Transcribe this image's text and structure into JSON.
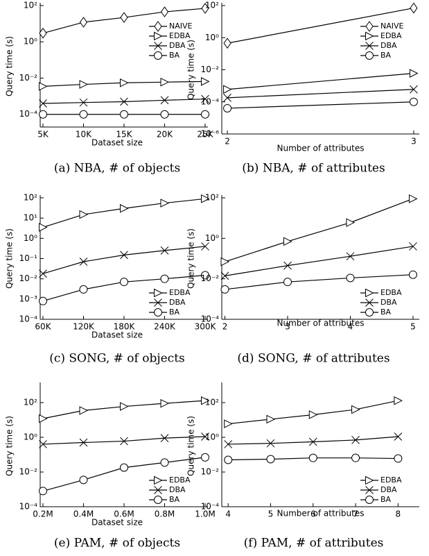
{
  "chart_data": [
    {
      "type": "line",
      "caption": "(a) NBA, # of objects",
      "xlabel": "Dataset size",
      "ylabel": "Query time (s)",
      "log_y": true,
      "legend": "upper right",
      "categories": [
        "5K",
        "10K",
        "15K",
        "20K",
        "25K"
      ],
      "ylim": [
        2e-05,
        100
      ],
      "yticks": [
        {
          "value": 0.0001,
          "label": "10⁻⁴"
        },
        {
          "value": 0.01,
          "label": "10⁻²"
        },
        {
          "value": 1,
          "label": "10⁰"
        },
        {
          "value": 100,
          "label": "10²"
        }
      ],
      "series": [
        {
          "name": "NAIVE",
          "marker": "diamond",
          "color": "#000000",
          "values": [
            3,
            12,
            22,
            45,
            70
          ]
        },
        {
          "name": "EDBA",
          "marker": "triangle",
          "color": "#000000",
          "values": [
            0.0035,
            0.0045,
            0.0055,
            0.006,
            0.0065
          ]
        },
        {
          "name": "DBA",
          "marker": "x",
          "color": "#000000",
          "values": [
            0.0004,
            0.00045,
            0.0005,
            0.0006,
            0.0007
          ]
        },
        {
          "name": "BA",
          "marker": "circle",
          "color": "#000000",
          "values": [
            0.0001,
            0.0001,
            0.0001,
            0.0001,
            0.0001
          ]
        }
      ]
    },
    {
      "type": "line",
      "caption": "(b) NBA, # of attributes",
      "xlabel": "Number of attributes",
      "ylabel": "Query time (s)",
      "log_y": true,
      "legend": "upper right",
      "x": [
        2,
        3
      ],
      "xlim": [
        1.97,
        3.03
      ],
      "xticks": [
        2,
        3
      ],
      "ylim": [
        1e-06,
        100
      ],
      "yticks": [
        {
          "value": 1e-06,
          "label": "10⁻⁶"
        },
        {
          "value": 0.0001,
          "label": "10⁻⁴"
        },
        {
          "value": 0.01,
          "label": "10⁻²"
        },
        {
          "value": 1,
          "label": "10⁰"
        },
        {
          "value": 100,
          "label": "10²"
        }
      ],
      "series": [
        {
          "name": "NAIVE",
          "marker": "diamond",
          "color": "#000000",
          "values": [
            0.45,
            70
          ]
        },
        {
          "name": "EDBA",
          "marker": "triangle",
          "color": "#000000",
          "values": [
            0.0006,
            0.006
          ]
        },
        {
          "name": "DBA",
          "marker": "x",
          "color": "#000000",
          "values": [
            0.00018,
            0.0006
          ]
        },
        {
          "name": "BA",
          "marker": "circle",
          "color": "#000000",
          "values": [
            4e-05,
            0.0001
          ]
        }
      ]
    },
    {
      "type": "line",
      "caption": "(c) SONG, # of objects",
      "xlabel": "Dataset size",
      "ylabel": "Query time (s)",
      "log_y": true,
      "legend": "lower right",
      "categories": [
        "60K",
        "120K",
        "180K",
        "240K",
        "300K"
      ],
      "ylim": [
        0.0001,
        100
      ],
      "yticks": [
        {
          "value": 0.0001,
          "label": "10⁻⁴"
        },
        {
          "value": 0.001,
          "label": "10⁻³"
        },
        {
          "value": 0.01,
          "label": "10⁻²"
        },
        {
          "value": 0.1,
          "label": "10⁻¹"
        },
        {
          "value": 1,
          "label": "10⁰"
        },
        {
          "value": 10,
          "label": "10¹"
        },
        {
          "value": 100,
          "label": "10²"
        }
      ],
      "series": [
        {
          "name": "EDBA",
          "marker": "triangle",
          "color": "#000000",
          "values": [
            3.5,
            15,
            30,
            55,
            90
          ]
        },
        {
          "name": "DBA",
          "marker": "x",
          "color": "#000000",
          "values": [
            0.018,
            0.07,
            0.15,
            0.25,
            0.4
          ]
        },
        {
          "name": "BA",
          "marker": "circle",
          "color": "#000000",
          "values": [
            0.0008,
            0.003,
            0.007,
            0.01,
            0.015
          ]
        }
      ]
    },
    {
      "type": "line",
      "caption": "(d) SONG, # of attributes",
      "xlabel": "Number of attributes",
      "ylabel": "Query time (s)",
      "log_y": true,
      "legend": "lower right",
      "x": [
        2,
        3,
        4,
        5
      ],
      "xlim": [
        1.95,
        5.1
      ],
      "xticks": [
        2,
        3,
        4,
        5
      ],
      "ylim": [
        0.0001,
        100
      ],
      "yticks": [
        {
          "value": 0.0001,
          "label": "10⁻⁴"
        },
        {
          "value": 0.01,
          "label": "10⁻²"
        },
        {
          "value": 1,
          "label": "10⁰"
        },
        {
          "value": 100,
          "label": "10²"
        }
      ],
      "series": [
        {
          "name": "EDBA",
          "marker": "triangle",
          "color": "#000000",
          "values": [
            0.07,
            0.7,
            6,
            90
          ]
        },
        {
          "name": "DBA",
          "marker": "x",
          "color": "#000000",
          "values": [
            0.014,
            0.045,
            0.13,
            0.4
          ]
        },
        {
          "name": "BA",
          "marker": "circle",
          "color": "#000000",
          "values": [
            0.003,
            0.007,
            0.011,
            0.016
          ]
        }
      ]
    },
    {
      "type": "line",
      "caption": "(e) PAM, # of objects",
      "xlabel": "Dataset size",
      "ylabel": "Query time (s)",
      "log_y": true,
      "legend": "lower right",
      "categories": [
        "0.2M",
        "0.4M",
        "0.6M",
        "0.8M",
        "1.0M"
      ],
      "ylim": [
        0.0001,
        1000
      ],
      "yticks": [
        {
          "value": 0.0001,
          "label": "10⁻⁴"
        },
        {
          "value": 0.01,
          "label": "10⁻²"
        },
        {
          "value": 1,
          "label": "10⁰"
        },
        {
          "value": 100,
          "label": "10²"
        }
      ],
      "series": [
        {
          "name": "EDBA",
          "marker": "triangle",
          "color": "#000000",
          "values": [
            12,
            35,
            60,
            90,
            130
          ]
        },
        {
          "name": "DBA",
          "marker": "x",
          "color": "#000000",
          "values": [
            0.4,
            0.5,
            0.6,
            0.9,
            1.1
          ]
        },
        {
          "name": "BA",
          "marker": "circle",
          "color": "#000000",
          "values": [
            0.0008,
            0.0035,
            0.018,
            0.035,
            0.07
          ]
        }
      ]
    },
    {
      "type": "line",
      "caption": "(f) PAM, # of attributes",
      "xlabel": "Number of attributes",
      "ylabel": "Query time (s)",
      "log_y": true,
      "legend": "lower right",
      "x": [
        4,
        5,
        6,
        7,
        8
      ],
      "xlim": [
        3.85,
        8.5
      ],
      "xticks": [
        4,
        5,
        6,
        7,
        8
      ],
      "ylim": [
        0.0001,
        1000
      ],
      "yticks": [
        {
          "value": 0.0001,
          "label": "10⁻⁴"
        },
        {
          "value": 0.01,
          "label": "10⁻²"
        },
        {
          "value": 1,
          "label": "10⁰"
        },
        {
          "value": 100,
          "label": "10²"
        }
      ],
      "series": [
        {
          "name": "EDBA",
          "marker": "triangle",
          "color": "#000000",
          "values": [
            6,
            11,
            20,
            40,
            130
          ]
        },
        {
          "name": "DBA",
          "marker": "x",
          "color": "#000000",
          "values": [
            0.4,
            0.45,
            0.55,
            0.7,
            1.1
          ]
        },
        {
          "name": "BA",
          "marker": "circle",
          "color": "#000000",
          "values": [
            0.05,
            0.055,
            0.065,
            0.065,
            0.06
          ]
        }
      ]
    }
  ]
}
